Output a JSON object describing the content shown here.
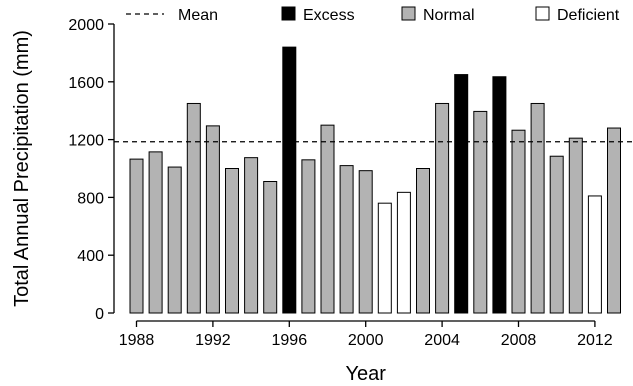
{
  "chart_data": {
    "type": "bar",
    "xlabel": "Year",
    "ylabel": "Total Annual Precipitation (mm)",
    "ylim": [
      0,
      2000
    ],
    "yticks": [
      0,
      400,
      800,
      1200,
      1600,
      2000
    ],
    "xticks": [
      1988,
      1992,
      1996,
      2000,
      2004,
      2008,
      2012
    ],
    "mean": 1185,
    "legend": {
      "placement": "top",
      "entries": [
        {
          "key": "mean",
          "label": "Mean",
          "style": "dashed-line"
        },
        {
          "key": "excess",
          "label": "Excess",
          "color": "#000000"
        },
        {
          "key": "normal",
          "label": "Normal",
          "color": "#b3b3b3"
        },
        {
          "key": "deficient",
          "label": "Deficient",
          "color": "#ffffff"
        }
      ]
    },
    "colors": {
      "excess": "#000000",
      "normal": "#b3b3b3",
      "deficient": "#ffffff",
      "outline": "#000000"
    },
    "bars": [
      {
        "year": 1988,
        "value": 1065,
        "category": "normal"
      },
      {
        "year": 1989,
        "value": 1115,
        "category": "normal"
      },
      {
        "year": 1990,
        "value": 1010,
        "category": "normal"
      },
      {
        "year": 1991,
        "value": 1450,
        "category": "normal"
      },
      {
        "year": 1992,
        "value": 1295,
        "category": "normal"
      },
      {
        "year": 1993,
        "value": 1000,
        "category": "normal"
      },
      {
        "year": 1994,
        "value": 1075,
        "category": "normal"
      },
      {
        "year": 1995,
        "value": 910,
        "category": "normal"
      },
      {
        "year": 1996,
        "value": 1840,
        "category": "excess"
      },
      {
        "year": 1997,
        "value": 1060,
        "category": "normal"
      },
      {
        "year": 1998,
        "value": 1300,
        "category": "normal"
      },
      {
        "year": 1999,
        "value": 1020,
        "category": "normal"
      },
      {
        "year": 2000,
        "value": 985,
        "category": "normal"
      },
      {
        "year": 2001,
        "value": 760,
        "category": "deficient"
      },
      {
        "year": 2002,
        "value": 835,
        "category": "deficient"
      },
      {
        "year": 2003,
        "value": 1000,
        "category": "normal"
      },
      {
        "year": 2004,
        "value": 1450,
        "category": "normal"
      },
      {
        "year": 2005,
        "value": 1650,
        "category": "excess"
      },
      {
        "year": 2006,
        "value": 1395,
        "category": "normal"
      },
      {
        "year": 2007,
        "value": 1635,
        "category": "excess"
      },
      {
        "year": 2008,
        "value": 1265,
        "category": "normal"
      },
      {
        "year": 2009,
        "value": 1450,
        "category": "normal"
      },
      {
        "year": 2010,
        "value": 1085,
        "category": "normal"
      },
      {
        "year": 2011,
        "value": 1210,
        "category": "normal"
      },
      {
        "year": 2012,
        "value": 810,
        "category": "deficient"
      },
      {
        "year": 2013,
        "value": 1280,
        "category": "normal"
      }
    ]
  }
}
